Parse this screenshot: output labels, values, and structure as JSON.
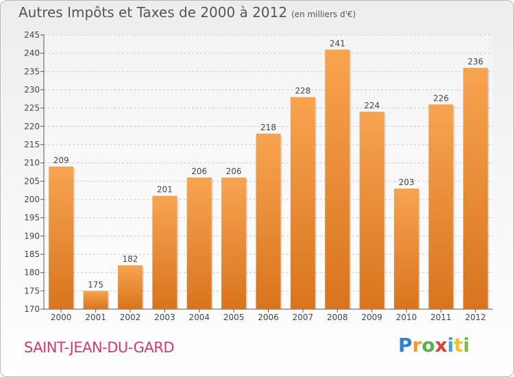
{
  "chart_data": {
    "type": "bar",
    "title": "Autres Impôts et Taxes de 2000 à 2012",
    "unit_note": "(en milliers d'€)",
    "categories": [
      "2000",
      "2001",
      "2002",
      "2003",
      "2004",
      "2005",
      "2006",
      "2007",
      "2008",
      "2009",
      "2010",
      "2011",
      "2012"
    ],
    "values": [
      209,
      175,
      182,
      201,
      206,
      206,
      218,
      228,
      241,
      224,
      203,
      226,
      236
    ],
    "ylim": [
      170,
      245
    ],
    "ytick_step": 5,
    "grid": true,
    "colors": {
      "bar_top": "#f7a450",
      "bar_bottom": "#d9741e",
      "grid": "#c8c8c8",
      "text": "#444444"
    }
  },
  "location_label": "SAINT-JEAN-DU-GARD",
  "logo": {
    "text": "Proxiti"
  }
}
